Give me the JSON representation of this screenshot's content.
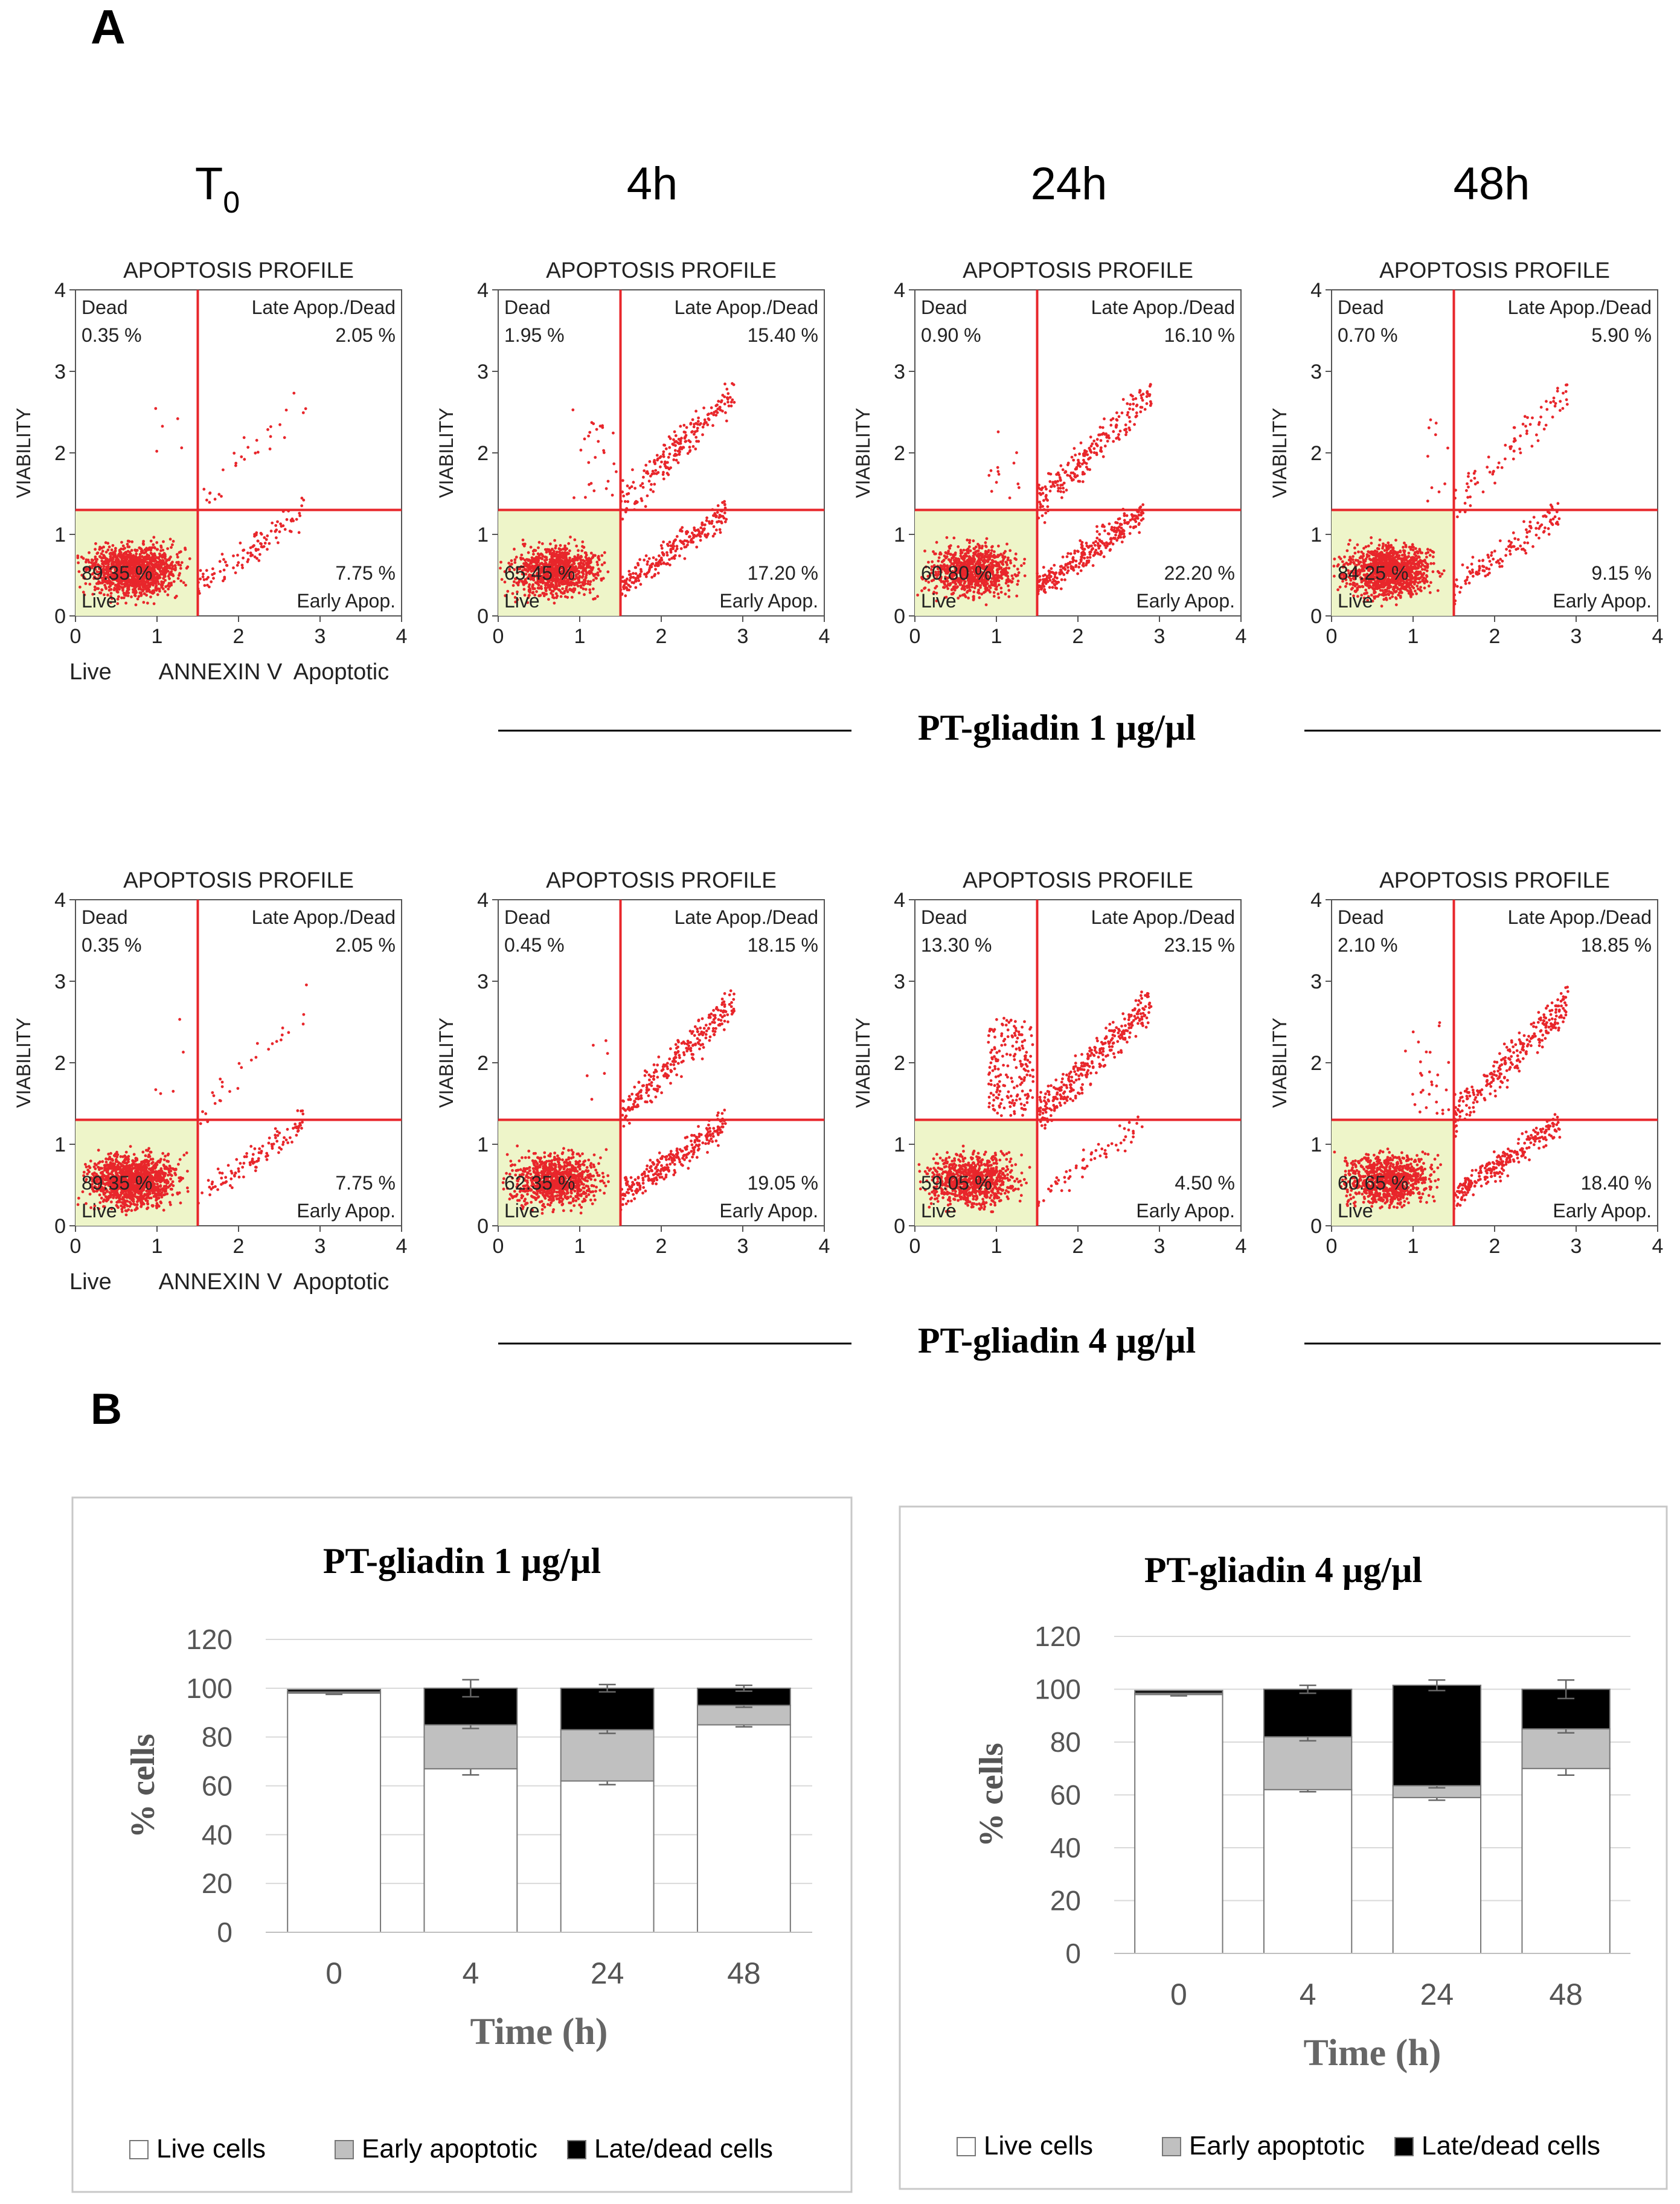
{
  "panel_labels": {
    "a": "A",
    "b": "B"
  },
  "time_headers": [
    {
      "main": "T",
      "sub": "0"
    },
    {
      "main": "4h",
      "sub": ""
    },
    {
      "main": "24h",
      "sub": ""
    },
    {
      "main": "48h",
      "sub": ""
    }
  ],
  "dose_labels": [
    "PT-gliadin  1 µg/µl",
    "PT-gliadin  4 µg/µl"
  ],
  "flow_common": {
    "title": "APOPTOSIS PROFILE",
    "ylabel": "VIABILITY",
    "xticks": [
      "0",
      "1",
      "2",
      "3",
      "4"
    ],
    "yticks": [
      "0",
      "1",
      "2",
      "3",
      "4"
    ],
    "q_dead": "Dead",
    "q_late": "Late Apop./Dead",
    "q_live": "Live",
    "q_early": "Early Apop.",
    "x_caption": [
      "Live",
      "ANNEXIN V",
      "Apoptotic"
    ],
    "gate_x": 1.5,
    "gate_y": 1.3,
    "colors": {
      "gate": "#e8262b",
      "dots": "#e8262b",
      "live_fill": "#eef5c9"
    }
  },
  "flow_plots": [
    {
      "row": 0,
      "col": 0,
      "dead": "0.35 %",
      "late": "2.05 %",
      "live": "89.35 %",
      "early": "7.75 %"
    },
    {
      "row": 0,
      "col": 1,
      "dead": "1.95 %",
      "late": "15.40 %",
      "live": "65.45 %",
      "early": "17.20 %"
    },
    {
      "row": 0,
      "col": 2,
      "dead": "0.90 %",
      "late": "16.10 %",
      "live": "60.80 %",
      "early": "22.20 %"
    },
    {
      "row": 0,
      "col": 3,
      "dead": "0.70 %",
      "late": "5.90 %",
      "live": "84.25 %",
      "early": "9.15 %"
    },
    {
      "row": 1,
      "col": 0,
      "dead": "0.35 %",
      "late": "2.05 %",
      "live": "89.35 %",
      "early": "7.75 %"
    },
    {
      "row": 1,
      "col": 1,
      "dead": "0.45 %",
      "late": "18.15 %",
      "live": "62.35 %",
      "early": "19.05 %"
    },
    {
      "row": 1,
      "col": 2,
      "dead": "13.30 %",
      "late": "23.15 %",
      "live": "59.05 %",
      "early": "4.50 %"
    },
    {
      "row": 1,
      "col": 3,
      "dead": "2.10 %",
      "late": "18.85 %",
      "live": "60.65 %",
      "early": "18.40 %"
    }
  ],
  "chart_data": [
    {
      "type": "bar",
      "stacked": true,
      "title": "PT-gliadin  1 µg/µl",
      "xlabel": "Time (h)",
      "ylabel": "% cells",
      "categories": [
        "0",
        "4",
        "24",
        "48"
      ],
      "ylim": [
        0,
        120
      ],
      "yticks": [
        0,
        20,
        40,
        60,
        80,
        100,
        120
      ],
      "grid": true,
      "legend": "bottom",
      "series": [
        {
          "name": "Live cells",
          "color": "#ffffff",
          "values": [
            98,
            67,
            62,
            85
          ],
          "errors": [
            0.5,
            2.5,
            1.5,
            0.8
          ]
        },
        {
          "name": "Early apoptotic",
          "color": "#c0c0c0",
          "values": [
            0.5,
            18,
            21,
            8
          ],
          "errors": [
            0,
            1.5,
            1.5,
            0.8
          ]
        },
        {
          "name": "Late/dead cells",
          "color": "#000000",
          "values": [
            1,
            15,
            17,
            7
          ],
          "errors": [
            0,
            3.5,
            1.5,
            1.2
          ]
        }
      ]
    },
    {
      "type": "bar",
      "stacked": true,
      "title": "PT-gliadin  4 µg/µl",
      "xlabel": "Time (h)",
      "ylabel": "% cells",
      "categories": [
        "0",
        "4",
        "24",
        "48"
      ],
      "ylim": [
        0,
        120
      ],
      "yticks": [
        0,
        20,
        40,
        60,
        80,
        100,
        120
      ],
      "grid": true,
      "legend": "bottom",
      "series": [
        {
          "name": "Live cells",
          "color": "#ffffff",
          "values": [
            98,
            62,
            59,
            70
          ],
          "errors": [
            0.5,
            0.8,
            1,
            2.5
          ]
        },
        {
          "name": "Early apoptotic",
          "color": "#c0c0c0",
          "values": [
            0.5,
            20,
            4.5,
            15
          ],
          "errors": [
            0,
            1.5,
            0.8,
            1.5
          ]
        },
        {
          "name": "Late/dead cells",
          "color": "#000000",
          "values": [
            1,
            18,
            38,
            15
          ],
          "errors": [
            0,
            1.5,
            2,
            3.5
          ]
        }
      ]
    }
  ]
}
